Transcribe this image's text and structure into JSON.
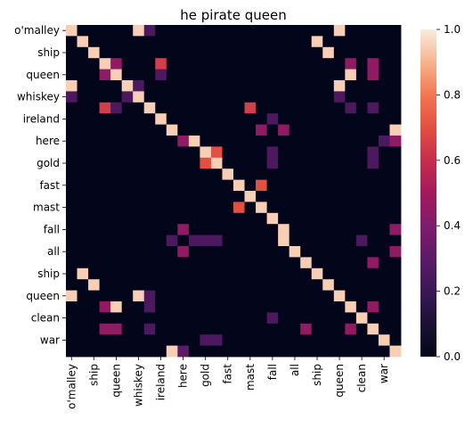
{
  "chart_data": {
    "type": "heatmap",
    "title": "he pirate queen",
    "tokens": [
      "o'malley",
      "ship",
      "",
      "",
      "queen",
      "",
      "whiskey",
      "",
      "ireland",
      "",
      "here",
      "",
      "gold",
      "",
      "fast",
      "",
      "mast",
      "",
      "fall",
      "",
      "all",
      "",
      "ship",
      "",
      "queen",
      "",
      "clean",
      "",
      "war",
      ""
    ],
    "x_tick_labels": [
      "o'malley",
      "ship",
      "queen",
      "whiskey",
      "ireland",
      "here",
      "gold",
      "fast",
      "mast",
      "fall",
      "all",
      "ship",
      "queen",
      "clean",
      "war"
    ],
    "y_tick_labels": [
      "o'malley",
      "ship",
      "queen",
      "whiskey",
      "ireland",
      "here",
      "gold",
      "fast",
      "mast",
      "fall",
      "all",
      "ship",
      "queen",
      "clean",
      "war"
    ],
    "value_range": [
      0.0,
      1.0
    ],
    "colormap": "rocket",
    "colorbar_ticks": [
      "0.0",
      "0.2",
      "0.4",
      "0.6",
      "0.8",
      "1.0"
    ],
    "values": [
      [
        0.95,
        0,
        0,
        0,
        0,
        0,
        0.95,
        0.25,
        0,
        0,
        0,
        0,
        0,
        0,
        0,
        0,
        0,
        0,
        0,
        0,
        0,
        0,
        0,
        0,
        0.95,
        0,
        0,
        0,
        0,
        0
      ],
      [
        0,
        0.95,
        0,
        0,
        0,
        0,
        0,
        0,
        0,
        0,
        0,
        0,
        0,
        0,
        0,
        0,
        0,
        0,
        0,
        0,
        0,
        0,
        0.95,
        0,
        0,
        0,
        0,
        0,
        0,
        0
      ],
      [
        0,
        0,
        0.95,
        0,
        0,
        0,
        0,
        0,
        0,
        0,
        0,
        0,
        0,
        0,
        0,
        0,
        0,
        0,
        0,
        0,
        0,
        0,
        0,
        0.95,
        0,
        0,
        0,
        0,
        0,
        0
      ],
      [
        0,
        0,
        0,
        0.95,
        0.45,
        0,
        0,
        0,
        0.65,
        0,
        0,
        0,
        0,
        0,
        0,
        0,
        0,
        0,
        0,
        0,
        0,
        0,
        0,
        0,
        0,
        0.45,
        0,
        0.45,
        0,
        0
      ],
      [
        0,
        0,
        0,
        0.45,
        0.95,
        0,
        0,
        0,
        0.25,
        0,
        0,
        0,
        0,
        0,
        0,
        0,
        0,
        0,
        0,
        0,
        0,
        0,
        0,
        0,
        0,
        0.95,
        0,
        0.45,
        0,
        0
      ],
      [
        0.95,
        0,
        0,
        0,
        0,
        0.95,
        0.25,
        0,
        0,
        0,
        0,
        0,
        0,
        0,
        0,
        0,
        0,
        0,
        0,
        0,
        0,
        0,
        0,
        0,
        0.95,
        0,
        0,
        0,
        0,
        0
      ],
      [
        0.25,
        0,
        0,
        0,
        0,
        0.25,
        0.95,
        0,
        0,
        0,
        0,
        0,
        0,
        0,
        0,
        0,
        0,
        0,
        0,
        0,
        0,
        0,
        0,
        0,
        0.25,
        0,
        0,
        0,
        0,
        0
      ],
      [
        0,
        0,
        0,
        0.65,
        0.25,
        0,
        0,
        0.95,
        0,
        0,
        0,
        0,
        0,
        0,
        0,
        0,
        0.65,
        0,
        0,
        0,
        0,
        0,
        0,
        0,
        0,
        0.25,
        0,
        0.25,
        0,
        0
      ],
      [
        0,
        0,
        0,
        0,
        0,
        0,
        0,
        0,
        0.95,
        0,
        0,
        0,
        0,
        0,
        0,
        0,
        0,
        0,
        0.25,
        0,
        0,
        0,
        0,
        0,
        0,
        0,
        0,
        0,
        0,
        0
      ],
      [
        0,
        0,
        0,
        0,
        0,
        0,
        0,
        0,
        0,
        0.95,
        0,
        0,
        0,
        0,
        0,
        0,
        0,
        0.45,
        0,
        0.45,
        0,
        0,
        0,
        0,
        0,
        0,
        0,
        0,
        0,
        0.95
      ],
      [
        0,
        0,
        0,
        0,
        0,
        0,
        0,
        0,
        0,
        0,
        0.45,
        0.95,
        0,
        0,
        0,
        0,
        0,
        0,
        0,
        0,
        0,
        0,
        0,
        0,
        0,
        0,
        0,
        0,
        0.25,
        0.45
      ],
      [
        0,
        0,
        0,
        0,
        0,
        0,
        0,
        0,
        0,
        0,
        0,
        0,
        0.95,
        0.7,
        0,
        0,
        0,
        0,
        0.25,
        0,
        0,
        0,
        0,
        0,
        0,
        0,
        0,
        0.25,
        0,
        0
      ],
      [
        0,
        0,
        0,
        0,
        0,
        0,
        0,
        0,
        0,
        0,
        0,
        0,
        0.7,
        0.95,
        0,
        0,
        0,
        0,
        0.25,
        0,
        0,
        0,
        0,
        0,
        0,
        0,
        0,
        0.25,
        0,
        0
      ],
      [
        0,
        0,
        0,
        0,
        0,
        0,
        0,
        0,
        0,
        0,
        0,
        0,
        0,
        0,
        0.95,
        0,
        0,
        0,
        0,
        0,
        0,
        0,
        0,
        0,
        0,
        0,
        0,
        0,
        0,
        0
      ],
      [
        0,
        0,
        0,
        0,
        0,
        0,
        0,
        0,
        0,
        0,
        0,
        0,
        0,
        0,
        0,
        0.95,
        0,
        0.7,
        0,
        0,
        0,
        0,
        0,
        0,
        0,
        0,
        0,
        0,
        0,
        0
      ],
      [
        0,
        0,
        0,
        0,
        0,
        0,
        0,
        0,
        0,
        0,
        0,
        0,
        0,
        0,
        0,
        0,
        0.95,
        0,
        0,
        0,
        0,
        0,
        0,
        0,
        0,
        0,
        0,
        0,
        0,
        0
      ],
      [
        0,
        0,
        0,
        0,
        0,
        0,
        0,
        0,
        0,
        0,
        0,
        0,
        0,
        0,
        0,
        0.7,
        0,
        0.95,
        0,
        0,
        0,
        0,
        0,
        0,
        0,
        0,
        0,
        0,
        0,
        0
      ],
      [
        0,
        0,
        0,
        0,
        0,
        0,
        0,
        0,
        0,
        0,
        0,
        0,
        0,
        0,
        0,
        0,
        0,
        0,
        0.95,
        0,
        0,
        0,
        0,
        0,
        0,
        0,
        0,
        0,
        0,
        0
      ],
      [
        0,
        0,
        0,
        0,
        0,
        0,
        0,
        0,
        0,
        0,
        0.45,
        0,
        0,
        0,
        0,
        0,
        0,
        0,
        0,
        0.95,
        0,
        0,
        0,
        0,
        0,
        0,
        0,
        0,
        0,
        0.45
      ],
      [
        0,
        0,
        0,
        0,
        0,
        0,
        0,
        0,
        0,
        0.25,
        0,
        0.25,
        0.25,
        0.25,
        0,
        0,
        0,
        0,
        0,
        0.95,
        0,
        0,
        0,
        0,
        0,
        0,
        0.25,
        0,
        0,
        0
      ],
      [
        0,
        0,
        0,
        0,
        0,
        0,
        0,
        0,
        0,
        0,
        0.45,
        0,
        0,
        0,
        0,
        0,
        0,
        0,
        0,
        0,
        0.95,
        0,
        0,
        0,
        0,
        0,
        0,
        0,
        0,
        0.45
      ],
      [
        0,
        0,
        0,
        0,
        0,
        0,
        0,
        0,
        0,
        0,
        0,
        0,
        0,
        0,
        0,
        0,
        0,
        0,
        0,
        0,
        0,
        0.95,
        0,
        0,
        0,
        0,
        0,
        0.45,
        0,
        0
      ],
      [
        0,
        0.95,
        0,
        0,
        0,
        0,
        0,
        0,
        0,
        0,
        0,
        0,
        0,
        0,
        0,
        0,
        0,
        0,
        0,
        0,
        0,
        0,
        0.95,
        0,
        0,
        0,
        0,
        0,
        0,
        0
      ],
      [
        0,
        0,
        0.95,
        0,
        0,
        0,
        0,
        0,
        0,
        0,
        0,
        0,
        0,
        0,
        0,
        0,
        0,
        0,
        0,
        0,
        0,
        0,
        0,
        0.95,
        0,
        0,
        0,
        0,
        0,
        0
      ],
      [
        0.95,
        0,
        0,
        0,
        0,
        0,
        0.95,
        0.25,
        0,
        0,
        0,
        0,
        0,
        0,
        0,
        0,
        0,
        0,
        0,
        0,
        0,
        0,
        0,
        0,
        0.95,
        0,
        0,
        0,
        0,
        0
      ],
      [
        0,
        0,
        0,
        0.45,
        0.95,
        0,
        0,
        0.25,
        0,
        0,
        0,
        0,
        0,
        0,
        0,
        0,
        0,
        0,
        0,
        0,
        0,
        0,
        0,
        0,
        0,
        0.95,
        0,
        0.45,
        0,
        0
      ],
      [
        0,
        0,
        0,
        0,
        0,
        0,
        0,
        0,
        0,
        0,
        0,
        0,
        0,
        0,
        0,
        0,
        0,
        0,
        0.25,
        0,
        0,
        0,
        0,
        0,
        0,
        0,
        0.95,
        0,
        0,
        0
      ],
      [
        0,
        0,
        0,
        0.45,
        0.45,
        0,
        0,
        0.25,
        0,
        0,
        0,
        0,
        0,
        0,
        0,
        0,
        0,
        0,
        0,
        0,
        0,
        0.45,
        0,
        0,
        0,
        0.45,
        0,
        0.95,
        0,
        0
      ],
      [
        0,
        0,
        0,
        0,
        0,
        0,
        0,
        0,
        0,
        0,
        0,
        0,
        0.25,
        0.25,
        0,
        0,
        0,
        0,
        0,
        0,
        0,
        0,
        0,
        0,
        0,
        0,
        0,
        0,
        0.95,
        0
      ],
      [
        0,
        0,
        0,
        0,
        0,
        0,
        0,
        0,
        0,
        0.95,
        0.3,
        0,
        0,
        0,
        0,
        0,
        0,
        0,
        0,
        0,
        0,
        0,
        0,
        0,
        0,
        0,
        0,
        0,
        0,
        0.95
      ]
    ]
  }
}
